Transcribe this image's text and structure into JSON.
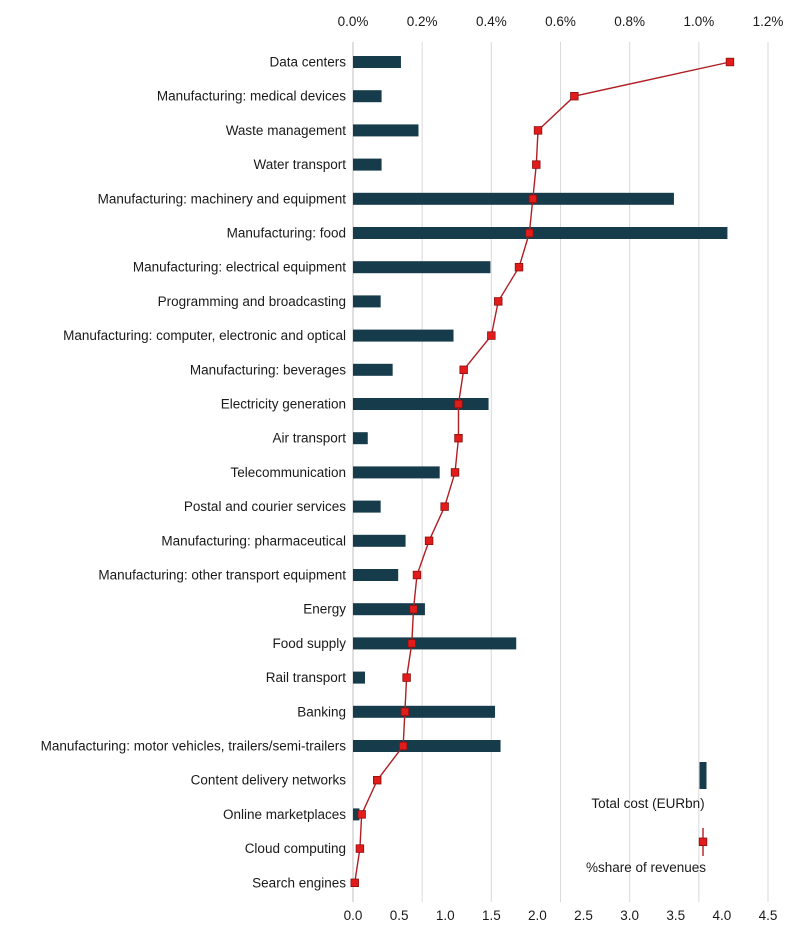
{
  "chart_data": {
    "type": "bar",
    "orientation": "horizontal",
    "categories": [
      "Data centers",
      "Manufacturing: medical devices",
      "Waste management",
      "Water transport",
      "Manufacturing: machinery and equipment",
      "Manufacturing: food",
      "Manufacturing: electrical equipment",
      "Programming and broadcasting",
      "Manufacturing: computer, electronic and optical",
      "Manufacturing: beverages",
      "Electricity generation",
      "Air transport",
      "Telecommunication",
      "Postal and courier services",
      "Manufacturing: pharmaceutical",
      "Manufacturing: other transport equipment",
      "Energy",
      "Food supply",
      "Rail transport",
      "Banking",
      "Manufacturing: motor vehicles, trailers/semi-trailers",
      "Content delivery networks",
      "Online marketplaces",
      "Cloud computing",
      "Search engines"
    ],
    "series": [
      {
        "name": "Total cost (EURbn)",
        "kind": "bar",
        "axis": "bottom",
        "color": "#163c4b",
        "values": [
          0.52,
          0.31,
          0.71,
          0.31,
          3.48,
          4.06,
          1.49,
          0.3,
          1.09,
          0.43,
          1.47,
          0.16,
          0.94,
          0.3,
          0.57,
          0.49,
          0.78,
          1.77,
          0.13,
          1.54,
          1.6,
          0.0,
          0.07,
          0.0,
          0.0
        ]
      },
      {
        "name": "%share of revenues",
        "kind": "line-marker",
        "axis": "top",
        "color": "#b01e24",
        "marker_color": "#e21b1b",
        "values": [
          1.09,
          0.64,
          0.535,
          0.53,
          0.52,
          0.51,
          0.48,
          0.42,
          0.4,
          0.32,
          0.305,
          0.305,
          0.295,
          0.265,
          0.22,
          0.185,
          0.175,
          0.17,
          0.155,
          0.15,
          0.145,
          0.07,
          0.025,
          0.02,
          0.005
        ]
      }
    ],
    "axes": {
      "bottom": {
        "min": 0,
        "max": 4.5,
        "tick_labels": [
          "0.0",
          "0.5",
          "1.0",
          "1.5",
          "2.0",
          "2.5",
          "3.0",
          "3.5",
          "4.0",
          "4.5"
        ]
      },
      "top": {
        "min": 0,
        "max": 1.2,
        "tick_labels": [
          "0.0%",
          "0.2%",
          "0.4%",
          "0.6%",
          "0.8%",
          "1.0%",
          "1.2%"
        ]
      }
    },
    "grid": true,
    "legend_position": "bottom-right",
    "title": ""
  }
}
